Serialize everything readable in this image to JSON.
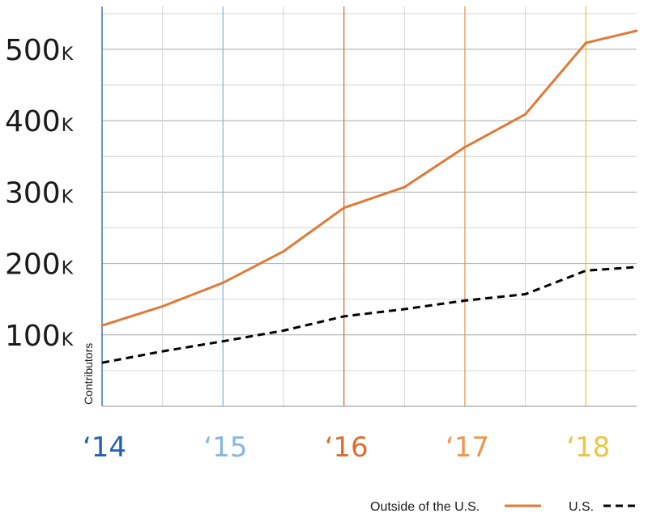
{
  "chart_data": {
    "type": "line",
    "title": "",
    "xlabel": "",
    "ylabel": "Contributors",
    "x": [
      2014.0,
      2014.5,
      2015.0,
      2015.5,
      2016.0,
      2016.5,
      2017.0,
      2017.5,
      2018.0,
      2018.42
    ],
    "xlim": [
      2014.0,
      2018.42
    ],
    "ylim": [
      0,
      560000
    ],
    "year_ticks": [
      {
        "value": 2014,
        "label": "‘14",
        "color": "#1f5fb4"
      },
      {
        "value": 2015,
        "label": "‘15",
        "color": "#86b6e6"
      },
      {
        "value": 2016,
        "label": "‘16",
        "color": "#e06b2f"
      },
      {
        "value": 2017,
        "label": "‘17",
        "color": "#f0954d"
      },
      {
        "value": 2018,
        "label": "‘18",
        "color": "#ecc542"
      }
    ],
    "minor_x": [
      2014.5,
      2015.5,
      2016.5,
      2017.5
    ],
    "y_ticks": [
      {
        "value": 100000,
        "num": "100",
        "suffix": "K"
      },
      {
        "value": 200000,
        "num": "200",
        "suffix": "K"
      },
      {
        "value": 300000,
        "num": "300",
        "suffix": "K"
      },
      {
        "value": 400000,
        "num": "400",
        "suffix": "K"
      },
      {
        "value": 500000,
        "num": "500",
        "suffix": "K"
      }
    ],
    "series": [
      {
        "name": "Outside of the U.S.",
        "color": "#e07a36",
        "style": "solid",
        "values": [
          113000,
          140000,
          173000,
          217000,
          278000,
          307000,
          363000,
          409000,
          509000,
          526000
        ]
      },
      {
        "name": "U.S.",
        "color": "#000000",
        "style": "dashed",
        "values": [
          61000,
          77000,
          91000,
          106000,
          126000,
          136000,
          148000,
          157000,
          190000,
          195000
        ]
      }
    ],
    "grid": true,
    "legend_position": "bottom-right"
  }
}
